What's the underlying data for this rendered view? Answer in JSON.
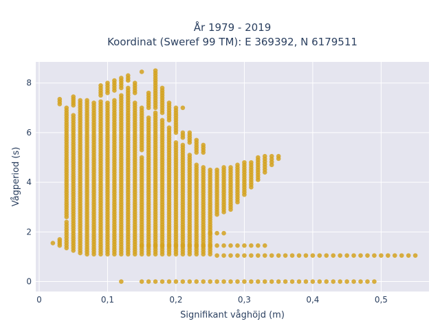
{
  "chart_data": {
    "type": "scatter",
    "title_line1": "År 1979 - 2019",
    "title_line2": "Koordinat (Sweref 99 TM): E 369392, N 6179511",
    "xlabel": "Signifikant våghöjd (m)",
    "ylabel": "Vågperiod (s)",
    "xlim": [
      -0.005,
      0.57
    ],
    "ylim": [
      -0.4,
      8.85
    ],
    "x_ticks": [
      {
        "value": 0,
        "label": "0"
      },
      {
        "value": 0.1,
        "label": "0,1"
      },
      {
        "value": 0.2,
        "label": "0,2"
      },
      {
        "value": 0.3,
        "label": "0,3"
      },
      {
        "value": 0.4,
        "label": "0,4"
      },
      {
        "value": 0.5,
        "label": "0,5"
      }
    ],
    "y_ticks": [
      {
        "value": 0,
        "label": "0"
      },
      {
        "value": 2,
        "label": "2"
      },
      {
        "value": 4,
        "label": "4"
      },
      {
        "value": 6,
        "label": "6"
      },
      {
        "value": 8,
        "label": "8"
      }
    ],
    "marker_color": "#d4a21f",
    "plot_bg": "#e5e5ef",
    "grid": true,
    "columns": [
      {
        "x": 0.02,
        "ranges": [
          [
            1.55,
            1.55
          ]
        ]
      },
      {
        "x": 0.03,
        "ranges": [
          [
            1.45,
            1.7
          ],
          [
            7.15,
            7.35
          ]
        ]
      },
      {
        "x": 0.04,
        "ranges": [
          [
            1.35,
            2.4
          ],
          [
            2.6,
            3.4
          ],
          [
            3.5,
            7.0
          ]
        ]
      },
      {
        "x": 0.05,
        "ranges": [
          [
            1.25,
            6.7
          ],
          [
            7.1,
            7.45
          ]
        ]
      },
      {
        "x": 0.06,
        "ranges": [
          [
            1.15,
            7.3
          ]
        ]
      },
      {
        "x": 0.07,
        "ranges": [
          [
            1.1,
            7.3
          ]
        ]
      },
      {
        "x": 0.08,
        "ranges": [
          [
            1.1,
            7.2
          ]
        ]
      },
      {
        "x": 0.09,
        "ranges": [
          [
            1.1,
            7.25
          ],
          [
            7.5,
            7.9
          ]
        ]
      },
      {
        "x": 0.1,
        "ranges": [
          [
            1.1,
            7.2
          ],
          [
            7.6,
            8.0
          ]
        ]
      },
      {
        "x": 0.11,
        "ranges": [
          [
            1.1,
            7.3
          ],
          [
            7.7,
            8.1
          ]
        ]
      },
      {
        "x": 0.12,
        "ranges": [
          [
            1.1,
            7.5
          ],
          [
            7.8,
            8.2
          ],
          [
            0.0,
            0.0
          ]
        ]
      },
      {
        "x": 0.13,
        "ranges": [
          [
            1.1,
            7.8
          ],
          [
            8.1,
            8.3
          ]
        ]
      },
      {
        "x": 0.14,
        "ranges": [
          [
            1.1,
            7.2
          ],
          [
            7.6,
            8.0
          ]
        ]
      },
      {
        "x": 0.15,
        "ranges": [
          [
            1.1,
            5.0
          ],
          [
            5.3,
            7.0
          ],
          [
            1.45,
            1.45
          ],
          [
            0.0,
            0.0
          ],
          [
            8.45,
            8.45
          ]
        ]
      },
      {
        "x": 0.16,
        "ranges": [
          [
            1.1,
            6.6
          ],
          [
            7.0,
            7.6
          ],
          [
            1.45,
            1.45
          ],
          [
            0.0,
            0.0
          ]
        ]
      },
      {
        "x": 0.17,
        "ranges": [
          [
            1.1,
            6.8
          ],
          [
            7.0,
            8.5
          ],
          [
            1.45,
            1.45
          ],
          [
            0.0,
            0.0
          ]
        ]
      },
      {
        "x": 0.18,
        "ranges": [
          [
            1.1,
            6.5
          ],
          [
            6.8,
            7.8
          ],
          [
            1.45,
            1.45
          ],
          [
            0.0,
            0.0
          ]
        ]
      },
      {
        "x": 0.19,
        "ranges": [
          [
            1.1,
            6.2
          ],
          [
            6.5,
            7.2
          ],
          [
            1.45,
            1.45
          ],
          [
            0.0,
            0.0
          ]
        ]
      },
      {
        "x": 0.2,
        "ranges": [
          [
            1.1,
            5.6
          ],
          [
            1.45,
            1.45
          ],
          [
            0.0,
            0.0
          ],
          [
            6.0,
            7.0
          ]
        ]
      },
      {
        "x": 0.21,
        "ranges": [
          [
            1.1,
            5.5
          ],
          [
            1.45,
            1.45
          ],
          [
            0.0,
            0.0
          ],
          [
            5.8,
            6.0
          ],
          [
            7.0,
            7.0
          ]
        ]
      },
      {
        "x": 0.22,
        "ranges": [
          [
            1.1,
            5.1
          ],
          [
            1.45,
            1.45
          ],
          [
            0.0,
            0.0
          ],
          [
            5.6,
            6.0
          ]
        ]
      },
      {
        "x": 0.23,
        "ranges": [
          [
            1.1,
            4.7
          ],
          [
            1.45,
            1.45
          ],
          [
            0.0,
            0.0
          ],
          [
            5.2,
            5.7
          ]
        ]
      },
      {
        "x": 0.24,
        "ranges": [
          [
            1.1,
            4.6
          ],
          [
            1.45,
            1.45
          ],
          [
            0.0,
            0.0
          ],
          [
            5.2,
            5.5
          ]
        ]
      },
      {
        "x": 0.25,
        "ranges": [
          [
            1.1,
            4.5
          ],
          [
            1.45,
            1.45
          ],
          [
            0.0,
            0.0
          ],
          [
            1.95,
            1.95
          ]
        ]
      },
      {
        "x": 0.26,
        "ranges": [
          [
            2.7,
            4.5
          ],
          [
            1.45,
            1.45
          ],
          [
            1.05,
            1.05
          ],
          [
            0.0,
            0.0
          ],
          [
            1.95,
            1.95
          ]
        ]
      },
      {
        "x": 0.27,
        "ranges": [
          [
            2.8,
            4.6
          ],
          [
            1.45,
            1.45
          ],
          [
            1.05,
            1.05
          ],
          [
            0.0,
            0.0
          ],
          [
            1.95,
            1.95
          ]
        ]
      },
      {
        "x": 0.28,
        "ranges": [
          [
            2.9,
            4.6
          ],
          [
            1.45,
            1.45
          ],
          [
            1.05,
            1.05
          ],
          [
            0.0,
            0.0
          ]
        ]
      },
      {
        "x": 0.29,
        "ranges": [
          [
            3.2,
            4.7
          ],
          [
            1.45,
            1.45
          ],
          [
            1.05,
            1.05
          ],
          [
            0.0,
            0.0
          ]
        ]
      },
      {
        "x": 0.3,
        "ranges": [
          [
            3.5,
            4.8
          ],
          [
            1.45,
            1.45
          ],
          [
            1.05,
            1.05
          ],
          [
            0.0,
            0.0
          ]
        ]
      },
      {
        "x": 0.31,
        "ranges": [
          [
            3.8,
            4.8
          ],
          [
            1.45,
            1.45
          ],
          [
            1.05,
            1.05
          ],
          [
            0.0,
            0.0
          ]
        ]
      },
      {
        "x": 0.32,
        "ranges": [
          [
            4.1,
            5.0
          ],
          [
            1.45,
            1.45
          ],
          [
            1.05,
            1.05
          ],
          [
            0.0,
            0.0
          ]
        ]
      },
      {
        "x": 0.33,
        "ranges": [
          [
            4.4,
            5.05
          ],
          [
            1.45,
            1.45
          ],
          [
            1.05,
            1.05
          ],
          [
            0.0,
            0.0
          ]
        ]
      },
      {
        "x": 0.34,
        "ranges": [
          [
            4.7,
            5.05
          ],
          [
            1.05,
            1.05
          ],
          [
            0.0,
            0.0
          ]
        ]
      },
      {
        "x": 0.35,
        "ranges": [
          [
            4.95,
            5.05
          ],
          [
            1.05,
            1.05
          ],
          [
            0.0,
            0.0
          ]
        ]
      },
      {
        "x": 0.36,
        "ranges": [
          [
            1.05,
            1.05
          ],
          [
            0.0,
            0.0
          ]
        ]
      },
      {
        "x": 0.37,
        "ranges": [
          [
            1.05,
            1.05
          ],
          [
            0.0,
            0.0
          ]
        ]
      },
      {
        "x": 0.38,
        "ranges": [
          [
            1.05,
            1.05
          ],
          [
            0.0,
            0.0
          ]
        ]
      },
      {
        "x": 0.39,
        "ranges": [
          [
            1.05,
            1.05
          ],
          [
            0.0,
            0.0
          ]
        ]
      },
      {
        "x": 0.4,
        "ranges": [
          [
            1.05,
            1.05
          ],
          [
            0.0,
            0.0
          ]
        ]
      },
      {
        "x": 0.41,
        "ranges": [
          [
            1.05,
            1.05
          ],
          [
            0.0,
            0.0
          ]
        ]
      },
      {
        "x": 0.42,
        "ranges": [
          [
            1.05,
            1.05
          ],
          [
            0.0,
            0.0
          ]
        ]
      },
      {
        "x": 0.43,
        "ranges": [
          [
            1.05,
            1.05
          ],
          [
            0.0,
            0.0
          ]
        ]
      },
      {
        "x": 0.44,
        "ranges": [
          [
            1.05,
            1.05
          ],
          [
            0.0,
            0.0
          ]
        ]
      },
      {
        "x": 0.45,
        "ranges": [
          [
            1.05,
            1.05
          ],
          [
            0.0,
            0.0
          ]
        ]
      },
      {
        "x": 0.46,
        "ranges": [
          [
            1.05,
            1.05
          ],
          [
            0.0,
            0.0
          ]
        ]
      },
      {
        "x": 0.47,
        "ranges": [
          [
            1.05,
            1.05
          ],
          [
            0.0,
            0.0
          ]
        ]
      },
      {
        "x": 0.48,
        "ranges": [
          [
            1.05,
            1.05
          ],
          [
            0.0,
            0.0
          ]
        ]
      },
      {
        "x": 0.49,
        "ranges": [
          [
            1.05,
            1.05
          ],
          [
            0.0,
            0.0
          ]
        ]
      },
      {
        "x": 0.5,
        "ranges": [
          [
            1.05,
            1.05
          ]
        ]
      },
      {
        "x": 0.51,
        "ranges": [
          [
            1.05,
            1.05
          ]
        ]
      },
      {
        "x": 0.52,
        "ranges": [
          [
            1.05,
            1.05
          ]
        ]
      },
      {
        "x": 0.53,
        "ranges": [
          [
            1.05,
            1.05
          ]
        ]
      },
      {
        "x": 0.54,
        "ranges": [
          [
            1.05,
            1.05
          ]
        ]
      },
      {
        "x": 0.55,
        "ranges": [
          [
            1.05,
            1.05
          ]
        ]
      }
    ]
  }
}
